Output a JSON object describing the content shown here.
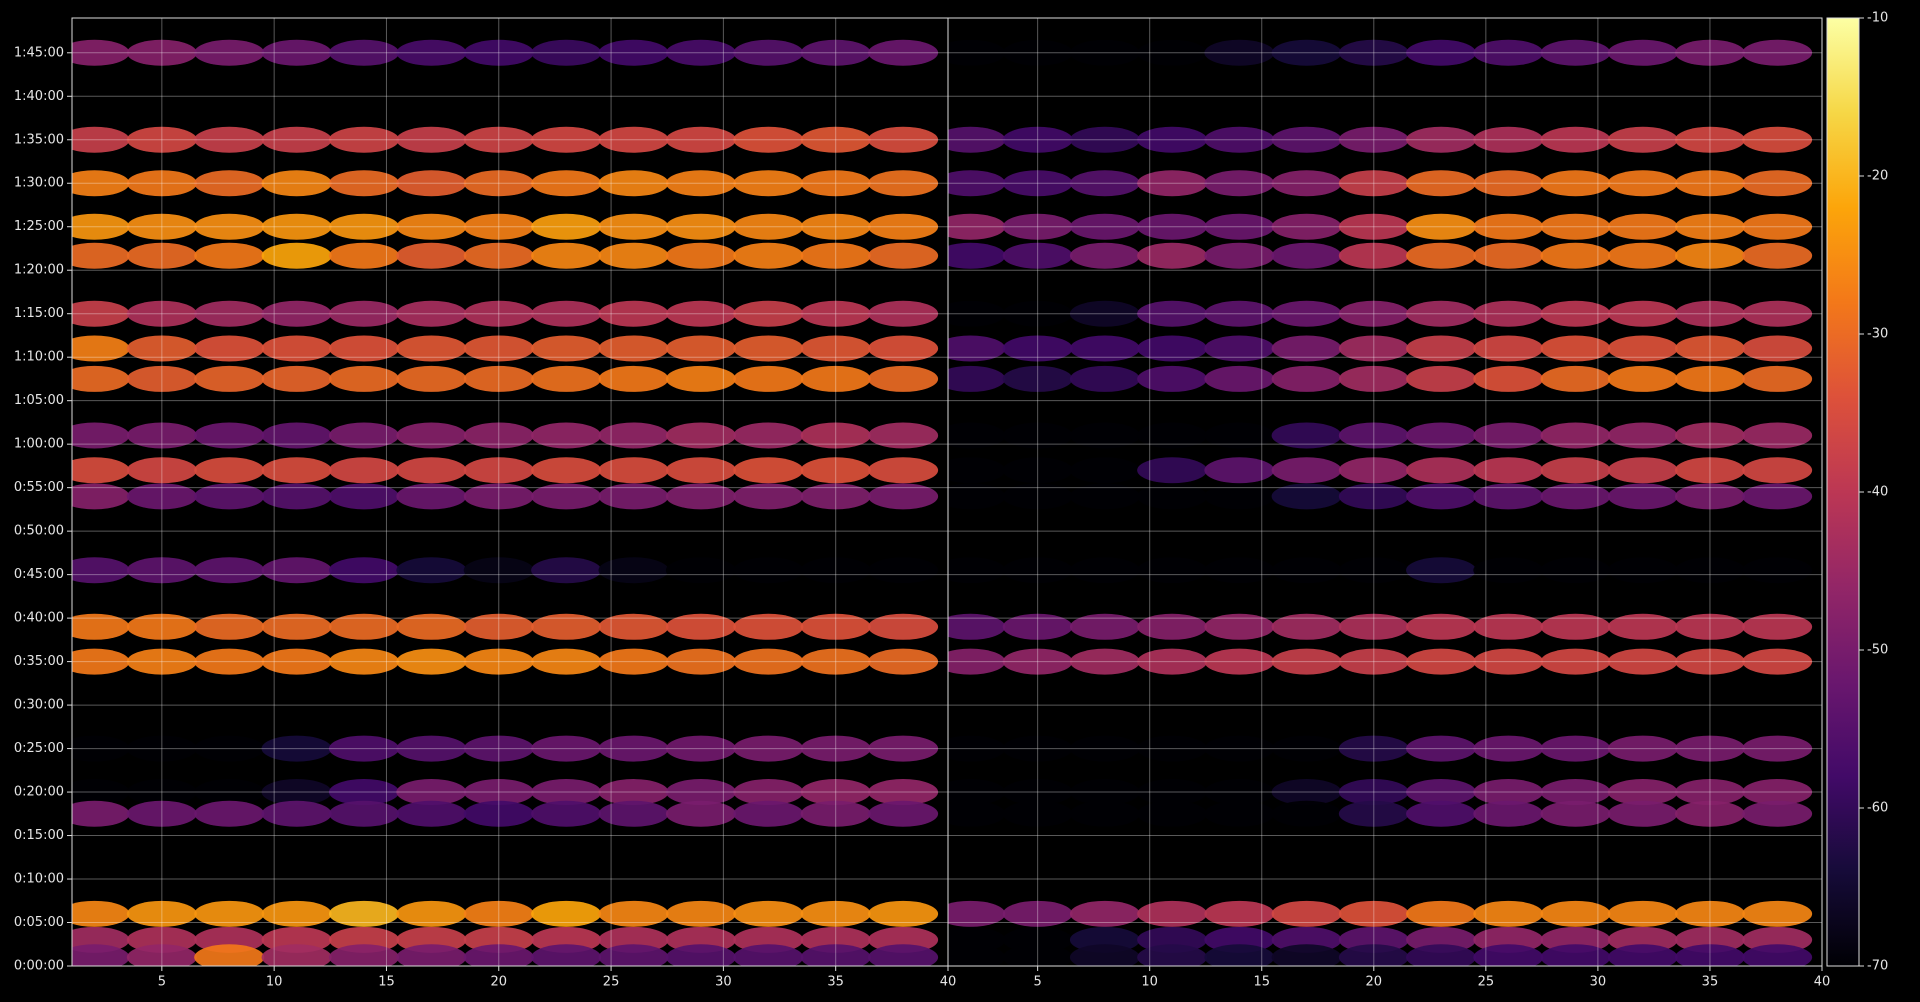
{
  "chart_data": {
    "type": "heatmap",
    "cmap": "inferno",
    "x": [
      2,
      5,
      8,
      11,
      14,
      17,
      20,
      23,
      26,
      29,
      32,
      35,
      38
    ],
    "y": [
      6300,
      5700,
      5400,
      5100,
      4900,
      4500,
      4260,
      4050,
      3660,
      3420,
      3240,
      2730,
      2340,
      2100,
      1500,
      1200,
      1050,
      360,
      180,
      60
    ],
    "xlim": [
      1,
      40
    ],
    "xticks": [
      5,
      10,
      15,
      20,
      25,
      30,
      35,
      40
    ],
    "ylim": [
      0,
      6540
    ],
    "yticks": [
      {
        "value": 0,
        "label": "0:00:00"
      },
      {
        "value": 300,
        "label": "0:05:00"
      },
      {
        "value": 600,
        "label": "0:10:00"
      },
      {
        "value": 900,
        "label": "0:15:00"
      },
      {
        "value": 1200,
        "label": "0:20:00"
      },
      {
        "value": 1500,
        "label": "0:25:00"
      },
      {
        "value": 1800,
        "label": "0:30:00"
      },
      {
        "value": 2100,
        "label": "0:35:00"
      },
      {
        "value": 2400,
        "label": "0:40:00"
      },
      {
        "value": 2700,
        "label": "0:45:00"
      },
      {
        "value": 3000,
        "label": "0:50:00"
      },
      {
        "value": 3300,
        "label": "0:55:00"
      },
      {
        "value": 3600,
        "label": "1:00:00"
      },
      {
        "value": 3900,
        "label": "1:05:00"
      },
      {
        "value": 4200,
        "label": "1:10:00"
      },
      {
        "value": 4500,
        "label": "1:15:00"
      },
      {
        "value": 4800,
        "label": "1:20:00"
      },
      {
        "value": 5100,
        "label": "1:25:00"
      },
      {
        "value": 5400,
        "label": "1:30:00"
      },
      {
        "value": 5700,
        "label": "1:35:00"
      },
      {
        "value": 6000,
        "label": "1:40:00"
      },
      {
        "value": 6300,
        "label": "1:45:00"
      }
    ],
    "grid": true,
    "colorbar": {
      "lim": [
        -70,
        -10
      ],
      "ticks": [
        -70,
        -60,
        -50,
        -40,
        -30,
        -20,
        -10
      ]
    },
    "panels": [
      {
        "values": [
          [
            -48,
            -48,
            -50,
            -52,
            -55,
            -57,
            -58,
            -59,
            -58,
            -57,
            -55,
            -54,
            -52
          ],
          [
            -38,
            -36,
            -38,
            -38,
            -37,
            -38,
            -37,
            -36,
            -36,
            -36,
            -34,
            -33,
            -35
          ],
          [
            -27,
            -28,
            -30,
            -26,
            -30,
            -32,
            -30,
            -28,
            -26,
            -27,
            -27,
            -28,
            -29
          ],
          [
            -24,
            -25,
            -25,
            -24,
            -24,
            -26,
            -27,
            -23,
            -25,
            -25,
            -26,
            -26,
            -27
          ],
          [
            -30,
            -30,
            -28,
            -22,
            -28,
            -32,
            -30,
            -26,
            -26,
            -28,
            -27,
            -28,
            -30
          ],
          [
            -38,
            -42,
            -44,
            -46,
            -45,
            -43,
            -42,
            -42,
            -40,
            -40,
            -38,
            -40,
            -42
          ],
          [
            -27,
            -32,
            -34,
            -34,
            -34,
            -33,
            -33,
            -32,
            -32,
            -32,
            -32,
            -33,
            -34
          ],
          [
            -30,
            -32,
            -31,
            -31,
            -30,
            -30,
            -30,
            -29,
            -28,
            -27,
            -28,
            -28,
            -30
          ],
          [
            -50,
            -50,
            -52,
            -53,
            -50,
            -48,
            -47,
            -46,
            -46,
            -44,
            -45,
            -42,
            -44
          ],
          [
            -35,
            -36,
            -35,
            -35,
            -36,
            -36,
            -36,
            -35,
            -35,
            -35,
            -34,
            -34,
            -35
          ],
          [
            -48,
            -52,
            -54,
            -55,
            -56,
            -52,
            -50,
            -50,
            -50,
            -49,
            -49,
            -49,
            -50
          ],
          [
            -55,
            -54,
            -54,
            -53,
            -58,
            -64,
            -68,
            -62,
            -68,
            -70,
            -70,
            -70,
            -70
          ],
          [
            -28,
            -28,
            -30,
            -30,
            -30,
            -30,
            -32,
            -32,
            -33,
            -34,
            -34,
            -34,
            -35
          ],
          [
            -28,
            -27,
            -28,
            -28,
            -26,
            -25,
            -26,
            -26,
            -28,
            -29,
            -29,
            -29,
            -30
          ],
          [
            -70,
            -70,
            -70,
            -64,
            -56,
            -55,
            -54,
            -52,
            -52,
            -51,
            -50,
            -50,
            -50
          ],
          [
            -70,
            -70,
            -70,
            -66,
            -58,
            -50,
            -50,
            -50,
            -48,
            -50,
            -48,
            -46,
            -46
          ],
          [
            -50,
            -52,
            -52,
            -54,
            -55,
            -56,
            -58,
            -56,
            -54,
            -50,
            -52,
            -50,
            -52
          ],
          [
            -26,
            -24,
            -24,
            -24,
            -20,
            -24,
            -27,
            -22,
            -26,
            -26,
            -25,
            -25,
            -24
          ],
          [
            -44,
            -42,
            -42,
            -40,
            -38,
            -38,
            -38,
            -40,
            -42,
            -42,
            -42,
            -42,
            -42
          ],
          [
            -50,
            -46,
            -28,
            -44,
            -48,
            -50,
            -52,
            -54,
            -54,
            -55,
            -55,
            -55,
            -55
          ]
        ]
      },
      {
        "values": [
          [
            -70,
            -70,
            -70,
            -70,
            -66,
            -64,
            -62,
            -58,
            -56,
            -54,
            -52,
            -50,
            -50
          ],
          [
            -55,
            -58,
            -60,
            -58,
            -56,
            -54,
            -50,
            -44,
            -42,
            -40,
            -38,
            -36,
            -35
          ],
          [
            -56,
            -57,
            -55,
            -46,
            -50,
            -48,
            -38,
            -30,
            -30,
            -28,
            -28,
            -28,
            -30
          ],
          [
            -46,
            -50,
            -52,
            -52,
            -52,
            -48,
            -40,
            -25,
            -28,
            -28,
            -28,
            -27,
            -28
          ],
          [
            -58,
            -56,
            -50,
            -45,
            -50,
            -52,
            -40,
            -30,
            -30,
            -28,
            -28,
            -26,
            -30
          ],
          [
            -70,
            -70,
            -66,
            -55,
            -54,
            -52,
            -48,
            -44,
            -42,
            -40,
            -40,
            -42,
            -42
          ],
          [
            -56,
            -58,
            -58,
            -58,
            -56,
            -50,
            -44,
            -38,
            -36,
            -34,
            -34,
            -33,
            -35
          ],
          [
            -60,
            -62,
            -60,
            -56,
            -52,
            -48,
            -44,
            -38,
            -34,
            -30,
            -28,
            -28,
            -30
          ],
          [
            -70,
            -70,
            -70,
            -70,
            -70,
            -60,
            -54,
            -52,
            -50,
            -46,
            -46,
            -44,
            -45
          ],
          [
            -70,
            -70,
            -70,
            -60,
            -54,
            -50,
            -46,
            -42,
            -40,
            -38,
            -38,
            -36,
            -36
          ],
          [
            -70,
            -70,
            -70,
            -70,
            -70,
            -64,
            -60,
            -56,
            -54,
            -52,
            -52,
            -50,
            -52
          ],
          [
            -70,
            -70,
            -70,
            -70,
            -70,
            -70,
            -70,
            -64,
            -70,
            -70,
            -70,
            -70,
            -70
          ],
          [
            -54,
            -52,
            -50,
            -48,
            -46,
            -44,
            -42,
            -40,
            -40,
            -40,
            -40,
            -40,
            -40
          ],
          [
            -48,
            -46,
            -44,
            -42,
            -40,
            -38,
            -38,
            -36,
            -36,
            -36,
            -36,
            -36,
            -36
          ],
          [
            -70,
            -70,
            -70,
            -70,
            -70,
            -70,
            -62,
            -54,
            -52,
            -52,
            -50,
            -50,
            -50
          ],
          [
            -70,
            -70,
            -70,
            -70,
            -70,
            -66,
            -60,
            -54,
            -50,
            -50,
            -48,
            -48,
            -48
          ],
          [
            -70,
            -70,
            -70,
            -70,
            -70,
            -70,
            -62,
            -56,
            -52,
            -50,
            -50,
            -48,
            -50
          ],
          [
            -50,
            -50,
            -46,
            -42,
            -40,
            -36,
            -34,
            -28,
            -26,
            -26,
            -26,
            -26,
            -26
          ],
          [
            -70,
            -70,
            -64,
            -60,
            -58,
            -56,
            -54,
            -50,
            -46,
            -46,
            -44,
            -44,
            -44
          ],
          [
            -70,
            -70,
            -66,
            -62,
            -64,
            -66,
            -62,
            -60,
            -58,
            -58,
            -58,
            -58,
            -58
          ]
        ]
      }
    ]
  }
}
